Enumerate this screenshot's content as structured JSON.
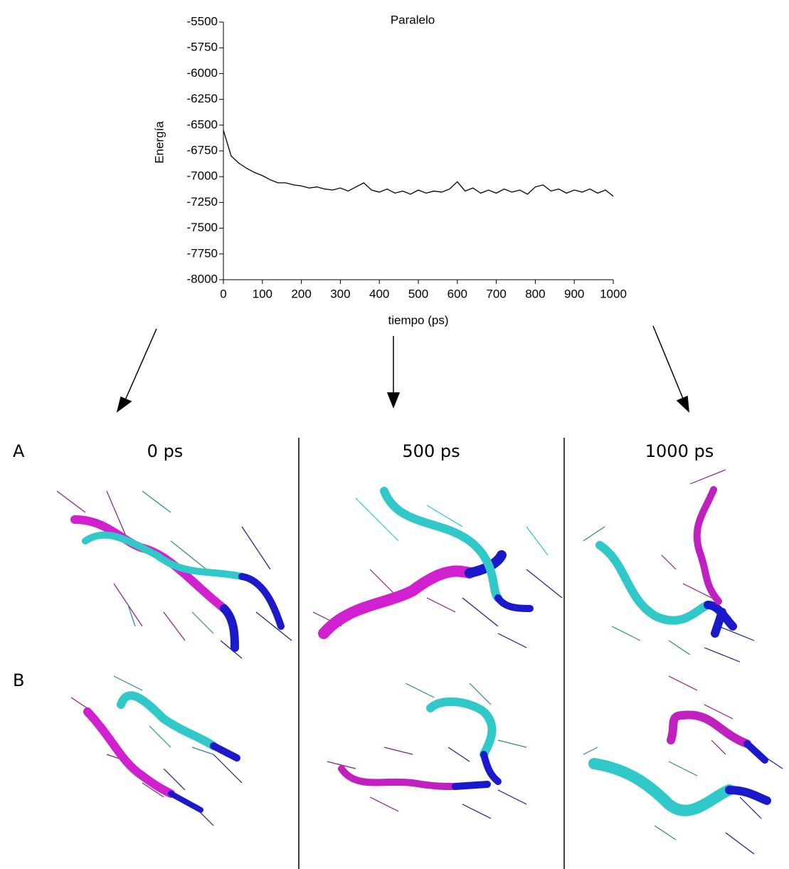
{
  "chart_data": {
    "type": "line",
    "title": "Paralelo",
    "x_label": "tiempo (ps)",
    "y_label": "Energía",
    "x": [
      0,
      20,
      40,
      60,
      80,
      100,
      120,
      140,
      160,
      180,
      200,
      220,
      240,
      260,
      280,
      300,
      320,
      340,
      360,
      380,
      400,
      420,
      440,
      460,
      480,
      500,
      520,
      540,
      560,
      580,
      600,
      620,
      640,
      660,
      680,
      700,
      720,
      740,
      760,
      780,
      800,
      820,
      840,
      860,
      880,
      900,
      920,
      940,
      960,
      980,
      1000
    ],
    "series": [
      {
        "name": "Paralelo",
        "color": "#000000",
        "values": [
          -6550,
          -6800,
          -6870,
          -6920,
          -6960,
          -6990,
          -7030,
          -7060,
          -7060,
          -7080,
          -7090,
          -7110,
          -7100,
          -7120,
          -7130,
          -7110,
          -7140,
          -7100,
          -7060,
          -7130,
          -7150,
          -7120,
          -7160,
          -7140,
          -7170,
          -7130,
          -7160,
          -7140,
          -7150,
          -7120,
          -7050,
          -7140,
          -7110,
          -7160,
          -7130,
          -7160,
          -7120,
          -7150,
          -7130,
          -7170,
          -7100,
          -7080,
          -7140,
          -7120,
          -7160,
          -7130,
          -7150,
          -7120,
          -7160,
          -7130,
          -7190
        ]
      }
    ],
    "xlim": [
      0,
      1000
    ],
    "xticks": [
      0,
      100,
      200,
      300,
      400,
      500,
      600,
      700,
      800,
      900,
      1000
    ],
    "ylim": [
      -8000,
      -5500
    ],
    "yticks": [
      -5500,
      -5750,
      -6000,
      -6250,
      -6500,
      -6750,
      -7000,
      -7250,
      -7500,
      -7750,
      -8000
    ],
    "grid": false
  },
  "panels": {
    "rows": [
      "A",
      "B"
    ],
    "columns": [
      "0 ps",
      "500 ps",
      "1000 ps"
    ]
  }
}
